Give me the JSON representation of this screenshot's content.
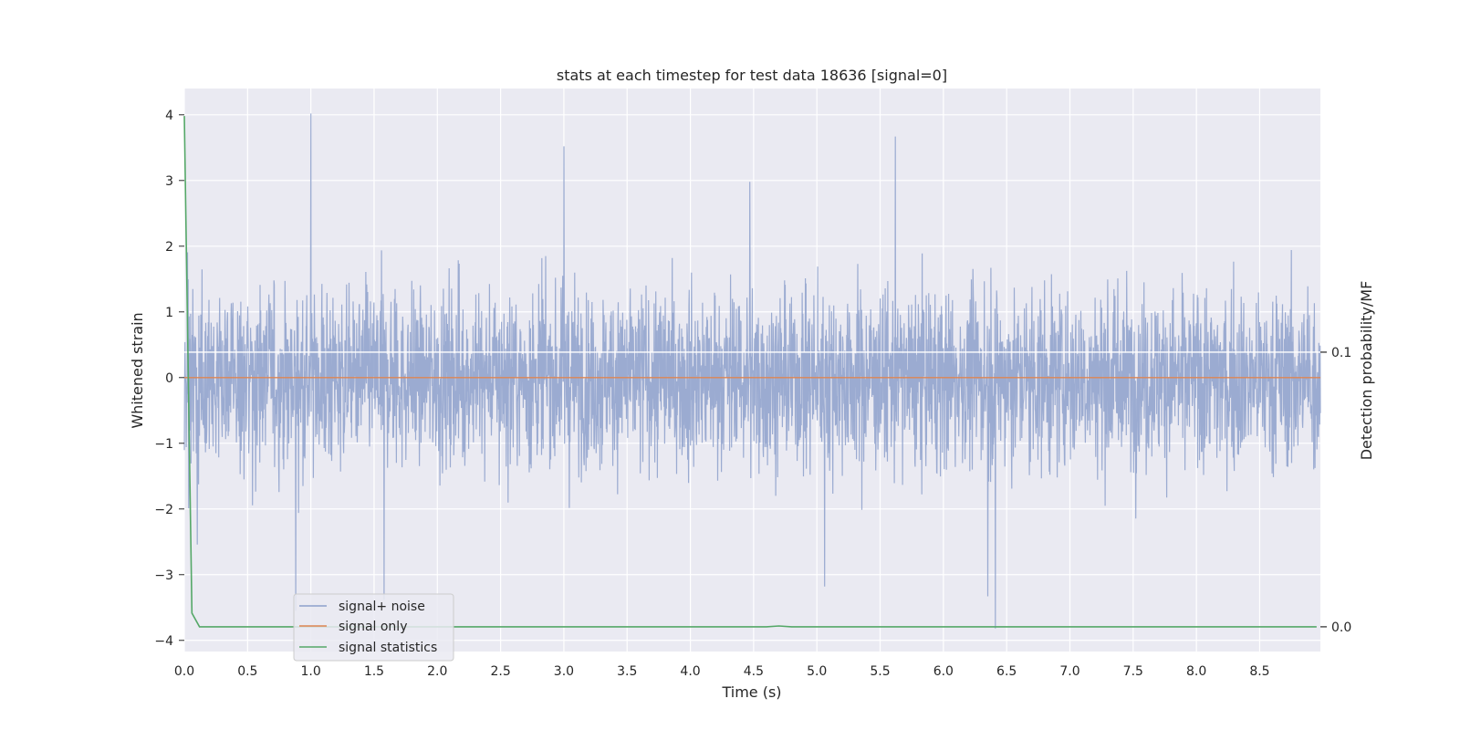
{
  "chart_data": {
    "type": "line",
    "title": "stats at each timestep for test data 18636 [signal=0]",
    "xlabel": "Time (s)",
    "ylabel": "Whitened strain",
    "y2label": "Detection probability/MF",
    "xlim": [
      0,
      8.98
    ],
    "ylim": [
      -4.17,
      4.4
    ],
    "y2lim": [
      -0.009,
      0.196
    ],
    "x_ticks": [
      0.0,
      0.5,
      1.0,
      1.5,
      2.0,
      2.5,
      3.0,
      3.5,
      4.0,
      4.5,
      5.0,
      5.5,
      6.0,
      6.5,
      7.0,
      7.5,
      8.0,
      8.5
    ],
    "x_tick_labels": [
      "0.0",
      "0.5",
      "1.0",
      "1.5",
      "2.0",
      "2.5",
      "3.0",
      "3.5",
      "4.0",
      "4.5",
      "5.0",
      "5.5",
      "6.0",
      "6.5",
      "7.0",
      "7.5",
      "8.0",
      "8.5"
    ],
    "y_ticks": [
      4,
      3,
      2,
      1,
      0,
      -1,
      -2,
      -3,
      -4
    ],
    "y_tick_labels": [
      "4",
      "3",
      "2",
      "1",
      "0",
      "−1",
      "−2",
      "−3",
      "−4"
    ],
    "y2_ticks": [
      0.1,
      0.0
    ],
    "y2_tick_labels": [
      "0.1",
      "0.0"
    ],
    "grid": true,
    "legend_placement": "lower-left",
    "series": [
      {
        "name": "signal+ noise",
        "axis": "left",
        "color": "#8da0cb",
        "envelope_hint": "dense noise roughly between -2.5 and 2.5",
        "spikes": [
          {
            "x": 1.0,
            "y": 4.02
          },
          {
            "x": 3.0,
            "y": 3.52
          },
          {
            "x": 5.62,
            "y": 3.67
          },
          {
            "x": 4.47,
            "y": 2.98
          },
          {
            "x": 0.88,
            "y": -3.55
          },
          {
            "x": 1.58,
            "y": -3.38
          },
          {
            "x": 5.06,
            "y": -3.18
          },
          {
            "x": 6.41,
            "y": -3.82
          },
          {
            "x": 6.35,
            "y": -3.33
          }
        ]
      },
      {
        "name": "signal only",
        "axis": "left",
        "color": "#dd8452",
        "x": [
          0.0,
          8.98
        ],
        "y": [
          0.0,
          0.0
        ]
      },
      {
        "name": "signal statistics",
        "axis": "right",
        "color": "#55a868",
        "x": [
          0.0,
          0.06,
          0.12,
          4.6,
          4.7,
          4.8,
          8.95
        ],
        "y": [
          0.186,
          0.005,
          0.0,
          0.0,
          0.0003,
          0.0,
          0.0
        ]
      }
    ],
    "horizontal_lines": [
      {
        "axis": "right",
        "y": 0.1,
        "color": "#ffffff"
      }
    ]
  }
}
